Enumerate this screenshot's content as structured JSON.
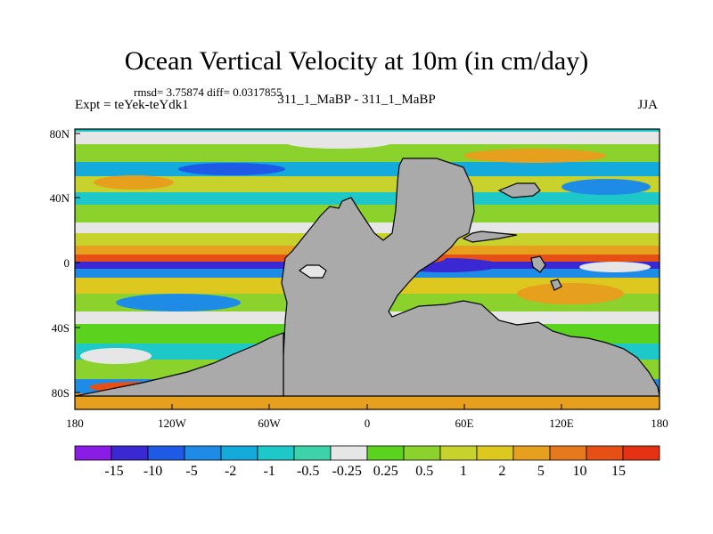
{
  "title": "Ocean Vertical Velocity at 10m (in cm/day)",
  "stats": "rmsd= 3.75874 diff= 0.0317855",
  "experiment": "Expt = teYek-teYdk1",
  "cases": "311_1_MaBP - 311_1_MaBP",
  "season": "JJA",
  "y_ticks": [
    "80N",
    "40N",
    "0",
    "40S",
    "80S"
  ],
  "x_ticks": [
    "180",
    "120W",
    "60W",
    "0",
    "60E",
    "120E",
    "180"
  ],
  "colorbar": {
    "colors": [
      "#8a1ce6",
      "#3a28d2",
      "#1e5ae6",
      "#1e8ce6",
      "#14aadc",
      "#1ec8c8",
      "#3cd2aa",
      "#e6e6e6",
      "#5ad21e",
      "#8cd22d",
      "#c8d22d",
      "#dcc81e",
      "#e6a01e",
      "#e6781e",
      "#e65014",
      "#e63214"
    ],
    "labels": [
      "-15",
      "-10",
      "-5",
      "-2",
      "-1",
      "-0.5",
      "-0.25",
      "0.25",
      "0.5",
      "1",
      "2",
      "5",
      "10",
      "15"
    ]
  },
  "land_color": "#aaaaaa"
}
